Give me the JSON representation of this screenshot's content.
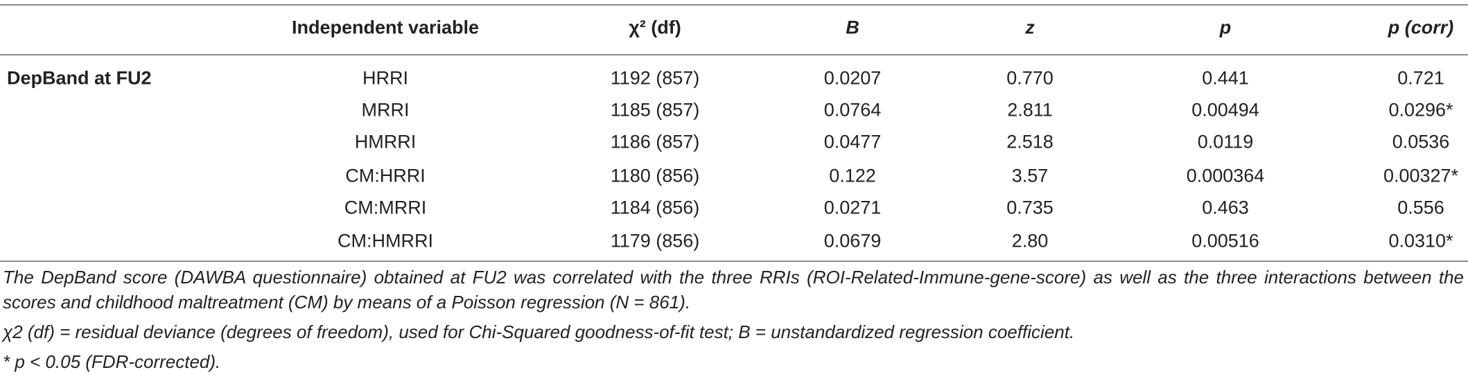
{
  "table": {
    "header": [
      "Independent variable",
      "χ² (df)",
      "B",
      "z",
      "p",
      "p (corr)"
    ],
    "group": "DepBand at FU2",
    "rows": [
      [
        "HRRI",
        "1192 (857)",
        "0.0207",
        "0.770",
        "0.441",
        "0.721"
      ],
      [
        "MRRI",
        "1185 (857)",
        "0.0764",
        "2.811",
        "0.00494",
        "0.0296*"
      ],
      [
        "HMRRI",
        "1186 (857)",
        "0.0477",
        "2.518",
        "0.0119",
        "0.0536"
      ],
      [
        "CM:HRRI",
        "1180 (856)",
        "0.122",
        "3.57",
        "0.000364",
        "0.00327*"
      ],
      [
        "CM:MRRI",
        "1184 (856)",
        "0.0271",
        "0.735",
        "0.463",
        "0.556"
      ],
      [
        "CM:HMRRI",
        "1179 (856)",
        "0.0679",
        "2.80",
        "0.00516",
        "0.0310*"
      ]
    ]
  },
  "notes": [
    "The DepBand score (DAWBA questionnaire) obtained at FU2 was correlated with the three RRIs (ROI-Related-Immune-gene-score) as well as the three interactions between the scores and childhood maltreatment (CM) by means of a Poisson regression (N = 861).",
    "χ2 (df) = residual deviance (degrees of freedom), used for Chi-Squared goodness-of-fit test; B = unstandardized regression coefficient.",
    "* p < 0.05 (FDR-corrected)."
  ]
}
